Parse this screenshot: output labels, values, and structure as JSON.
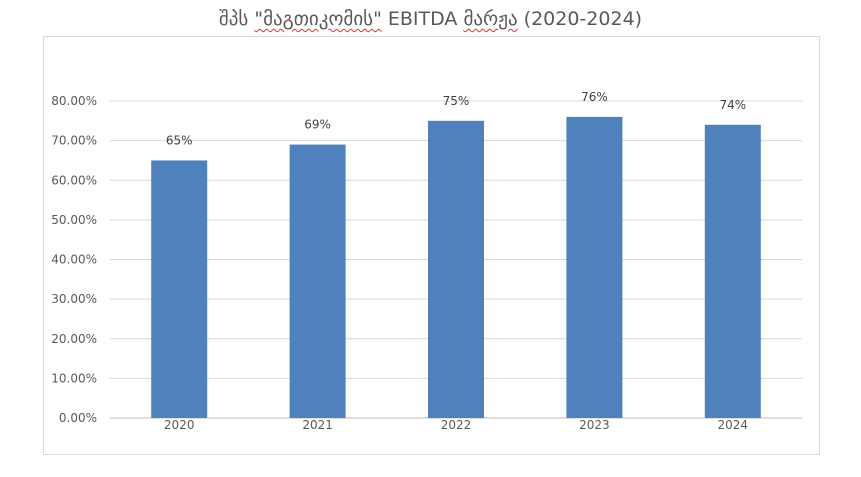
{
  "chart_data": {
    "type": "bar",
    "title_prefix": "შპს ",
    "title_quoted": "\"მაგთიკომის\"",
    "title_middle": " EBITDA ",
    "title_word": "მარჟა",
    "title_suffix": " (2020-2024)",
    "categories": [
      "2020",
      "2021",
      "2022",
      "2023",
      "2024"
    ],
    "values": [
      65,
      69,
      75,
      76,
      74
    ],
    "data_labels": [
      "65%",
      "69%",
      "75%",
      "76%",
      "74%"
    ],
    "yticks": [
      {
        "value": 0,
        "label": "0.00%"
      },
      {
        "value": 10,
        "label": "10.00%"
      },
      {
        "value": 20,
        "label": "20.00%"
      },
      {
        "value": 30,
        "label": "30.00%"
      },
      {
        "value": 40,
        "label": "40.00%"
      },
      {
        "value": 50,
        "label": "50.00%"
      },
      {
        "value": 60,
        "label": "60.00%"
      },
      {
        "value": 70,
        "label": "70.00%"
      },
      {
        "value": 80,
        "label": "80.00%"
      }
    ],
    "ylim": [
      0,
      80
    ],
    "xlabel": "",
    "ylabel": "",
    "grid": true,
    "bar_color": "#4f81bd",
    "grid_color": "#d9d9d9",
    "axis_color": "#bfbfbf"
  }
}
